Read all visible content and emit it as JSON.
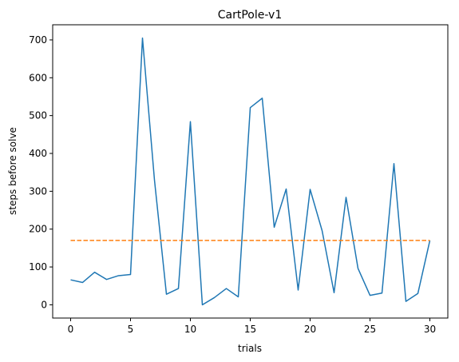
{
  "chart_data": {
    "type": "line",
    "title": "CartPole-v1",
    "xlabel": "trials",
    "ylabel": "steps before solve",
    "xlim": [
      -1.5,
      31.5
    ],
    "ylim": [
      -35,
      740
    ],
    "xticks": [
      0,
      5,
      10,
      15,
      20,
      25,
      30
    ],
    "yticks": [
      0,
      100,
      200,
      300,
      400,
      500,
      600,
      700
    ],
    "grid": false,
    "series": [
      {
        "color": "#1f77b4",
        "style": "solid",
        "x": [
          0,
          1,
          2,
          3,
          4,
          5,
          6,
          7,
          8,
          9,
          10,
          11,
          12,
          13,
          14,
          15,
          16,
          17,
          18,
          19,
          20,
          21,
          22,
          23,
          24,
          25,
          26,
          27,
          28,
          29,
          30
        ],
        "y": [
          66,
          59,
          86,
          67,
          77,
          80,
          705,
          330,
          28,
          43,
          484,
          0,
          19,
          43,
          21,
          521,
          546,
          205,
          306,
          39,
          305,
          196,
          32,
          284,
          96,
          25,
          31,
          373,
          9,
          30,
          170
        ]
      },
      {
        "color": "#ff7f0e",
        "style": "dashed",
        "x": [
          0,
          30
        ],
        "y": [
          170,
          170
        ]
      }
    ]
  }
}
